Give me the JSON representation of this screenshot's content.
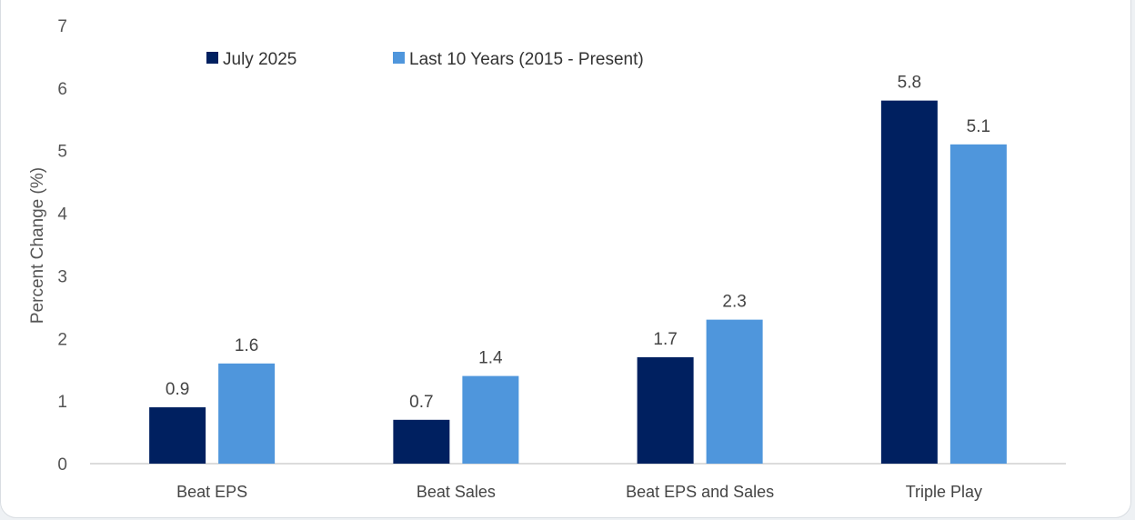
{
  "chart_data": {
    "type": "bar",
    "title": "",
    "xlabel": "",
    "ylabel": "Percent Change (%)",
    "ylim": [
      0,
      7
    ],
    "yticks": [
      0,
      1,
      2,
      3,
      4,
      5,
      6,
      7
    ],
    "grid": false,
    "legend_position": "top-left",
    "categories": [
      "Beat EPS",
      "Beat Sales",
      "Beat EPS and Sales",
      "Triple Play"
    ],
    "series": [
      {
        "name": "July 2025",
        "color": "#002060",
        "values": [
          0.9,
          0.7,
          1.7,
          5.8
        ],
        "labels": [
          "0.9",
          "0.7",
          "1.7",
          "5.8"
        ]
      },
      {
        "name": "Last 10 Years (2015 - Present)",
        "color": "#4f96dc",
        "values": [
          1.6,
          1.4,
          2.3,
          5.1
        ],
        "labels": [
          "1.6",
          "1.4",
          "2.3",
          "5.1"
        ]
      }
    ]
  }
}
